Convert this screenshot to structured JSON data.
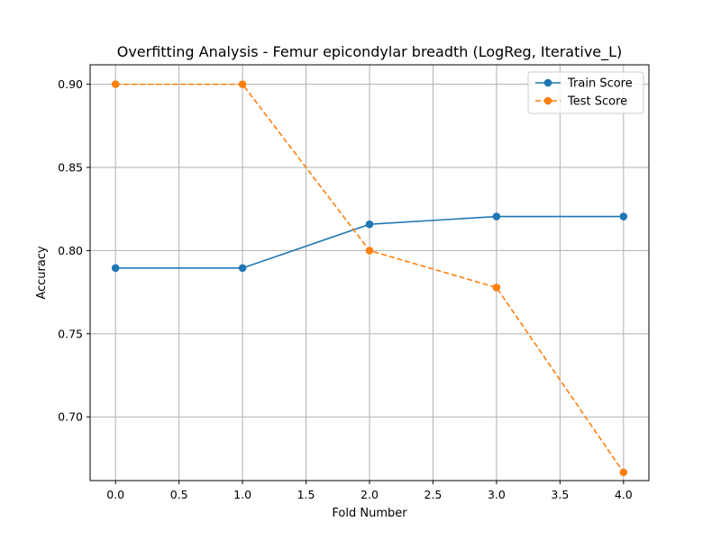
{
  "chart_data": {
    "type": "line",
    "title": "Overfitting Analysis - Femur epicondylar breadth (LogReg, Iterative_L)",
    "xlabel": "Fold Number",
    "ylabel": "Accuracy",
    "x": [
      0,
      1,
      2,
      3,
      4
    ],
    "xlim": [
      -0.2,
      4.2
    ],
    "ylim": [
      0.6617,
      0.9117
    ],
    "xticks": [
      0.0,
      0.5,
      1.0,
      1.5,
      2.0,
      2.5,
      3.0,
      3.5,
      4.0
    ],
    "xtick_labels": [
      "0.0",
      "0.5",
      "1.0",
      "1.5",
      "2.0",
      "2.5",
      "3.0",
      "3.5",
      "4.0"
    ],
    "yticks": [
      0.7,
      0.75,
      0.8,
      0.85,
      0.9
    ],
    "ytick_labels": [
      "0.70",
      "0.75",
      "0.80",
      "0.85",
      "0.90"
    ],
    "grid": true,
    "legend": "top-right",
    "series": [
      {
        "name": "Train Score",
        "values": [
          0.7895,
          0.7895,
          0.8158,
          0.8205,
          0.8205
        ],
        "color": "#1f77b4",
        "style": "solid"
      },
      {
        "name": "Test Score",
        "values": [
          0.9,
          0.9,
          0.8,
          0.7778,
          0.6667
        ],
        "color": "#ff7f0e",
        "style": "dashed"
      }
    ]
  }
}
